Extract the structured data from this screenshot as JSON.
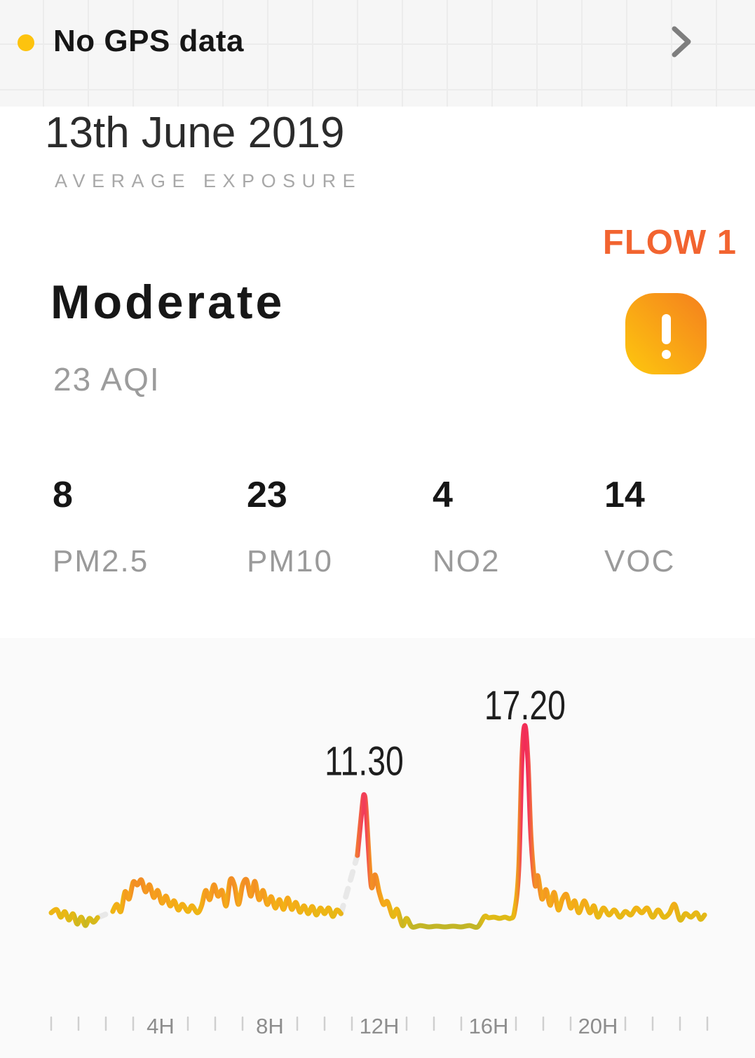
{
  "banner": {
    "status_label": "No GPS data",
    "status_dot_color": "#fdc30e"
  },
  "header": {
    "date": "13th June 2019",
    "subtitle": "AVERAGE EXPOSURE",
    "device_label": "FLOW 1"
  },
  "summary": {
    "quality_label": "Moderate",
    "aqi_value": "23 AQI"
  },
  "stats": [
    {
      "value": "8",
      "label": "PM2.5"
    },
    {
      "value": "23",
      "label": "PM10"
    },
    {
      "value": "4",
      "label": "NO2"
    },
    {
      "value": "14",
      "label": "VOC"
    }
  ],
  "colors": {
    "accent_orange": "#f26430",
    "badge_gradient": [
      "#f5831d",
      "#fdc40f"
    ],
    "gap_dash": "#e8e8e8",
    "tick": "#cfcfcf",
    "tick_label": "#8d8d8d"
  },
  "chart_data": {
    "type": "line",
    "title": "24h personal exposure (AQI over time of day)",
    "x_unit": "hour",
    "x_range": [
      0,
      24
    ],
    "grid": false,
    "tick_hours_labeled": [
      4,
      8,
      12,
      16,
      20
    ],
    "tick_labels": [
      "4H",
      "8H",
      "12H",
      "16H",
      "20H"
    ],
    "minor_tick_every_hours": 1,
    "peak_annotations": [
      {
        "label": "11.30",
        "hour": 11.45,
        "value": 73
      },
      {
        "label": "17.20",
        "hour": 17.33,
        "value": 105
      }
    ],
    "gaps_hours": [
      [
        1.7,
        2.25
      ],
      [
        10.6,
        11.2
      ]
    ],
    "color_scale": [
      [
        11,
        "#b9b32c"
      ],
      [
        16,
        "#debb16"
      ],
      [
        20,
        "#f2b414"
      ],
      [
        26,
        "#f6a01d"
      ],
      [
        34,
        "#f18a26"
      ],
      [
        50,
        "#f2673e"
      ],
      [
        70,
        "#f23c5a"
      ],
      [
        105,
        "#f22b56"
      ]
    ],
    "series": [
      {
        "name": "AQI",
        "points": [
          [
            0,
            18.5
          ],
          [
            0.2,
            20
          ],
          [
            0.35,
            16.5
          ],
          [
            0.5,
            19
          ],
          [
            0.65,
            15.2
          ],
          [
            0.8,
            18
          ],
          [
            0.95,
            13.3
          ],
          [
            1.1,
            16.5
          ],
          [
            1.25,
            12.6
          ],
          [
            1.4,
            15.9
          ],
          [
            1.55,
            14.2
          ],
          [
            1.7,
            16.3
          ],
          [
            2.25,
            19.1
          ],
          [
            2.4,
            22.4
          ],
          [
            2.55,
            19.1
          ],
          [
            2.7,
            28.2
          ],
          [
            2.85,
            24.9
          ],
          [
            3,
            32.7
          ],
          [
            3.15,
            31.4
          ],
          [
            3.3,
            33.7
          ],
          [
            3.45,
            28.2
          ],
          [
            3.6,
            31.4
          ],
          [
            3.75,
            25.6
          ],
          [
            3.9,
            28.8
          ],
          [
            4.05,
            23
          ],
          [
            4.2,
            26.2
          ],
          [
            4.35,
            21.7
          ],
          [
            4.5,
            24
          ],
          [
            4.65,
            19.8
          ],
          [
            4.8,
            22.4
          ],
          [
            5,
            19.1
          ],
          [
            5.15,
            21.7
          ],
          [
            5.35,
            18.5
          ],
          [
            5.5,
            21.7
          ],
          [
            5.65,
            28.8
          ],
          [
            5.8,
            24.6
          ],
          [
            5.95,
            31.4
          ],
          [
            6.1,
            26.2
          ],
          [
            6.25,
            28.8
          ],
          [
            6.4,
            21.7
          ],
          [
            6.55,
            33.7
          ],
          [
            6.7,
            31.4
          ],
          [
            6.85,
            22.4
          ],
          [
            7,
            31.4
          ],
          [
            7.15,
            33.7
          ],
          [
            7.3,
            26.2
          ],
          [
            7.45,
            33
          ],
          [
            7.6,
            24.6
          ],
          [
            7.75,
            28.8
          ],
          [
            7.9,
            22.4
          ],
          [
            8.05,
            25.9
          ],
          [
            8.2,
            20.7
          ],
          [
            8.35,
            24.6
          ],
          [
            8.5,
            20.1
          ],
          [
            8.65,
            25.3
          ],
          [
            8.8,
            20.1
          ],
          [
            8.95,
            23.3
          ],
          [
            9.1,
            18.8
          ],
          [
            9.25,
            21.7
          ],
          [
            9.4,
            18.1
          ],
          [
            9.55,
            21.4
          ],
          [
            9.7,
            17.5
          ],
          [
            9.85,
            20.7
          ],
          [
            10,
            18.1
          ],
          [
            10.15,
            20.7
          ],
          [
            10.3,
            16.8
          ],
          [
            10.45,
            19.8
          ],
          [
            10.6,
            18.1
          ],
          [
            11.2,
            45
          ],
          [
            11.38,
            68
          ],
          [
            11.45,
            73
          ],
          [
            11.52,
            66
          ],
          [
            11.7,
            31.4
          ],
          [
            11.85,
            36
          ],
          [
            12,
            27.9
          ],
          [
            12.15,
            22.4
          ],
          [
            12.3,
            23.6
          ],
          [
            12.5,
            16.8
          ],
          [
            12.65,
            20.1
          ],
          [
            12.85,
            12.6
          ],
          [
            13,
            15.9
          ],
          [
            13.2,
            12
          ],
          [
            13.5,
            12.6
          ],
          [
            13.8,
            12
          ],
          [
            14.1,
            12.3
          ],
          [
            14.4,
            12
          ],
          [
            14.7,
            12.3
          ],
          [
            15,
            12
          ],
          [
            15.3,
            12.6
          ],
          [
            15.6,
            12
          ],
          [
            15.85,
            16.8
          ],
          [
            16,
            16.2
          ],
          [
            16.2,
            16.5
          ],
          [
            16.4,
            15.9
          ],
          [
            16.6,
            16.5
          ],
          [
            16.8,
            15.9
          ],
          [
            16.95,
            19.1
          ],
          [
            17.1,
            38.5
          ],
          [
            17.22,
            90
          ],
          [
            17.33,
            105
          ],
          [
            17.44,
            88
          ],
          [
            17.55,
            53
          ],
          [
            17.7,
            31.4
          ],
          [
            17.8,
            35.6
          ],
          [
            17.95,
            24.9
          ],
          [
            18.1,
            29.2
          ],
          [
            18.25,
            22
          ],
          [
            18.4,
            27.9
          ],
          [
            18.55,
            19.8
          ],
          [
            18.7,
            24.9
          ],
          [
            18.85,
            26.9
          ],
          [
            19,
            20.7
          ],
          [
            19.15,
            24
          ],
          [
            19.3,
            18.5
          ],
          [
            19.5,
            24
          ],
          [
            19.7,
            18.5
          ],
          [
            19.85,
            21.7
          ],
          [
            20,
            16.5
          ],
          [
            20.2,
            20.7
          ],
          [
            20.4,
            17.5
          ],
          [
            20.6,
            19.8
          ],
          [
            20.8,
            16.5
          ],
          [
            21,
            19.1
          ],
          [
            21.2,
            17.5
          ],
          [
            21.4,
            20.7
          ],
          [
            21.6,
            18.5
          ],
          [
            21.8,
            20.7
          ],
          [
            22,
            16.5
          ],
          [
            22.2,
            19.8
          ],
          [
            22.4,
            16.5
          ],
          [
            22.6,
            18.1
          ],
          [
            22.8,
            22.4
          ],
          [
            23,
            15.2
          ],
          [
            23.2,
            18.1
          ],
          [
            23.4,
            16.5
          ],
          [
            23.6,
            18.5
          ],
          [
            23.75,
            15.5
          ],
          [
            23.9,
            17.5
          ]
        ]
      }
    ]
  }
}
